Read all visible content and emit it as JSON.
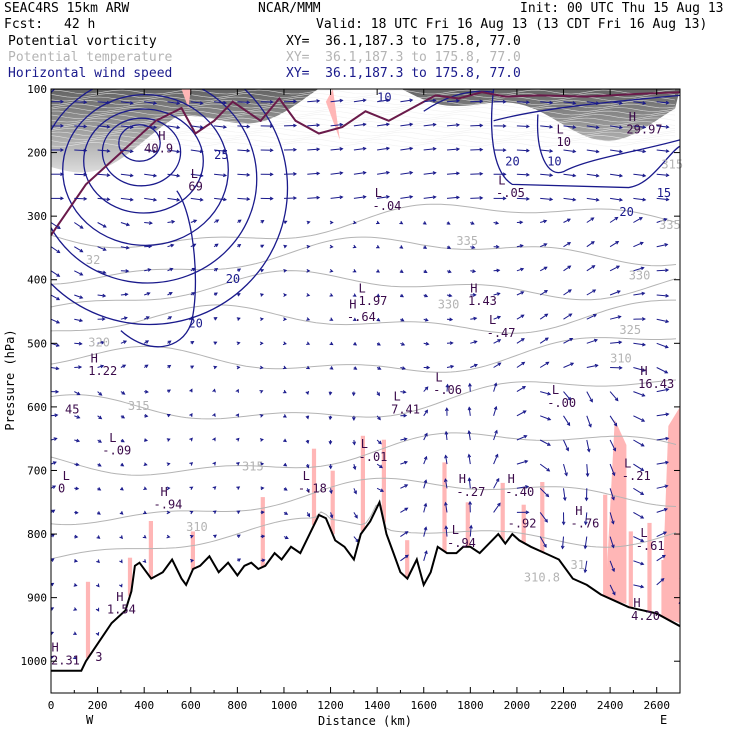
{
  "header": {
    "model": "SEAC4RS 15km ARW",
    "org": "NCAR/MMM",
    "init": "Init: 00 UTC Thu 15 Aug 13",
    "fcst_label": "Fcst:",
    "fcst_value": "42 h",
    "valid": "Valid: 18 UTC Fri 16 Aug 13 (13 CDT Fri 16 Aug 13)"
  },
  "fields": [
    {
      "name": "Potential vorticity",
      "xy": "XY=  36.1,187.3 to 175.8, 77.0",
      "color": "#000000"
    },
    {
      "name": "Potential temperature",
      "xy": "XY=  36.1,187.3 to 175.8, 77.0",
      "color": "#b4b4b4"
    },
    {
      "name": "Horizontal wind speed",
      "xy": "XY=  36.1,187.3 to 175.8, 77.0",
      "color": "#1a1a8c"
    }
  ],
  "chart_data": {
    "type": "cross-section",
    "xlabel": "Distance (km)",
    "ylabel": "Pressure (hPa)",
    "xlim": [
      0,
      2700
    ],
    "ylim": [
      1050,
      100
    ],
    "x_ticks": [
      "0",
      "200",
      "400",
      "600",
      "800",
      "1000",
      "1200",
      "1400",
      "1600",
      "1800",
      "2000",
      "2200",
      "2400",
      "2600"
    ],
    "y_ticks": [
      "100",
      "200",
      "300",
      "400",
      "500",
      "600",
      "700",
      "800",
      "900",
      "1000"
    ],
    "x_end_labels": {
      "left": "W",
      "right": "E"
    },
    "terrain_color": "#000000",
    "pv_fill_color": "#ffb6b6",
    "wind_color": "#1a1a8c",
    "theta_color": "#b4b4b4",
    "pv_line_color": "#6a1a4a",
    "terrain": [
      {
        "x": 0,
        "p": 1015
      },
      {
        "x": 130,
        "p": 1015
      },
      {
        "x": 150,
        "p": 1000
      },
      {
        "x": 260,
        "p": 940
      },
      {
        "x": 320,
        "p": 920
      },
      {
        "x": 345,
        "p": 890
      },
      {
        "x": 360,
        "p": 850
      },
      {
        "x": 380,
        "p": 845
      },
      {
        "x": 430,
        "p": 870
      },
      {
        "x": 480,
        "p": 860
      },
      {
        "x": 520,
        "p": 840
      },
      {
        "x": 560,
        "p": 870
      },
      {
        "x": 580,
        "p": 880
      },
      {
        "x": 610,
        "p": 855
      },
      {
        "x": 640,
        "p": 850
      },
      {
        "x": 680,
        "p": 835
      },
      {
        "x": 720,
        "p": 860
      },
      {
        "x": 760,
        "p": 845
      },
      {
        "x": 800,
        "p": 865
      },
      {
        "x": 830,
        "p": 850
      },
      {
        "x": 860,
        "p": 845
      },
      {
        "x": 890,
        "p": 855
      },
      {
        "x": 920,
        "p": 850
      },
      {
        "x": 960,
        "p": 830
      },
      {
        "x": 990,
        "p": 840
      },
      {
        "x": 1030,
        "p": 820
      },
      {
        "x": 1070,
        "p": 830
      },
      {
        "x": 1110,
        "p": 800
      },
      {
        "x": 1150,
        "p": 770
      },
      {
        "x": 1180,
        "p": 775
      },
      {
        "x": 1220,
        "p": 810
      },
      {
        "x": 1260,
        "p": 820
      },
      {
        "x": 1300,
        "p": 840
      },
      {
        "x": 1330,
        "p": 800
      },
      {
        "x": 1370,
        "p": 780
      },
      {
        "x": 1410,
        "p": 750
      },
      {
        "x": 1440,
        "p": 800
      },
      {
        "x": 1470,
        "p": 830
      },
      {
        "x": 1500,
        "p": 860
      },
      {
        "x": 1530,
        "p": 870
      },
      {
        "x": 1570,
        "p": 840
      },
      {
        "x": 1600,
        "p": 880
      },
      {
        "x": 1630,
        "p": 860
      },
      {
        "x": 1660,
        "p": 820
      },
      {
        "x": 1700,
        "p": 830
      },
      {
        "x": 1740,
        "p": 830
      },
      {
        "x": 1770,
        "p": 820
      },
      {
        "x": 1800,
        "p": 820
      },
      {
        "x": 1840,
        "p": 830
      },
      {
        "x": 1880,
        "p": 815
      },
      {
        "x": 1920,
        "p": 800
      },
      {
        "x": 1950,
        "p": 815
      },
      {
        "x": 1980,
        "p": 800
      },
      {
        "x": 2010,
        "p": 810
      },
      {
        "x": 2060,
        "p": 820
      },
      {
        "x": 2120,
        "p": 830
      },
      {
        "x": 2180,
        "p": 840
      },
      {
        "x": 2240,
        "p": 870
      },
      {
        "x": 2300,
        "p": 880
      },
      {
        "x": 2360,
        "p": 895
      },
      {
        "x": 2420,
        "p": 905
      },
      {
        "x": 2480,
        "p": 915
      },
      {
        "x": 2540,
        "p": 920
      },
      {
        "x": 2600,
        "p": 925
      },
      {
        "x": 2700,
        "p": 945
      }
    ],
    "pv_labels": [
      {
        "t": "H",
        "x": 2,
        "p": 985
      },
      {
        "t": "2.31",
        "x": 0,
        "p": 1005
      },
      {
        "t": "H",
        "x": 280,
        "p": 905
      },
      {
        "t": "1.54",
        "x": 240,
        "p": 925
      },
      {
        "t": "H",
        "x": 170,
        "p": 530
      },
      {
        "t": "1.22",
        "x": 160,
        "p": 550
      },
      {
        "t": "L",
        "x": 50,
        "p": 715
      },
      {
        "t": "0",
        "x": 30,
        "p": 735
      },
      {
        "t": "H",
        "x": 470,
        "p": 740
      },
      {
        "t": "-.94",
        "x": 440,
        "p": 760
      },
      {
        "t": "L",
        "x": 250,
        "p": 655
      },
      {
        "t": "-.09",
        "x": 220,
        "p": 675
      },
      {
        "t": "L",
        "x": 600,
        "p": 240
      },
      {
        "t": "69",
        "x": 590,
        "p": 260
      },
      {
        "t": "45",
        "x": 60,
        "p": 610
      },
      {
        "t": "L",
        "x": 1330,
        "p": 665
      },
      {
        "t": "-.01",
        "x": 1320,
        "p": 685
      },
      {
        "t": "H",
        "x": 1280,
        "p": 445
      },
      {
        "t": "-.64",
        "x": 1270,
        "p": 465
      },
      {
        "t": "L",
        "x": 1320,
        "p": 420
      },
      {
        "t": "1.97",
        "x": 1320,
        "p": 440
      },
      {
        "t": "H",
        "x": 1800,
        "p": 420
      },
      {
        "t": "1.43",
        "x": 1790,
        "p": 440
      },
      {
        "t": "L",
        "x": 1470,
        "p": 590
      },
      {
        "t": "7.41",
        "x": 1460,
        "p": 610
      },
      {
        "t": "L",
        "x": 1650,
        "p": 560
      },
      {
        "t": "-.06",
        "x": 1640,
        "p": 580
      },
      {
        "t": "L",
        "x": 1880,
        "p": 470
      },
      {
        "t": "-.47",
        "x": 1870,
        "p": 490
      },
      {
        "t": "L",
        "x": 1390,
        "p": 270
      },
      {
        "t": "-.04",
        "x": 1380,
        "p": 290
      },
      {
        "t": "L",
        "x": 1080,
        "p": 715
      },
      {
        "t": "-.18",
        "x": 1060,
        "p": 735
      },
      {
        "t": "H",
        "x": 1750,
        "p": 720
      },
      {
        "t": "-.27",
        "x": 1740,
        "p": 740
      },
      {
        "t": "L",
        "x": 1720,
        "p": 800
      },
      {
        "t": "-.94",
        "x": 1700,
        "p": 820
      },
      {
        "t": "H",
        "x": 1960,
        "p": 720
      },
      {
        "t": "-.40",
        "x": 1950,
        "p": 740
      },
      {
        "t": "-.92",
        "x": 1960,
        "p": 790
      },
      {
        "t": "L",
        "x": 2150,
        "p": 580
      },
      {
        "t": "-.00",
        "x": 2130,
        "p": 600
      },
      {
        "t": "H",
        "x": 2530,
        "p": 550
      },
      {
        "t": "16.43",
        "x": 2520,
        "p": 570
      },
      {
        "t": "L",
        "x": 2460,
        "p": 695
      },
      {
        "t": "-.21",
        "x": 2450,
        "p": 715
      },
      {
        "t": "H",
        "x": 2250,
        "p": 770
      },
      {
        "t": "-.76",
        "x": 2230,
        "p": 790
      },
      {
        "t": "L",
        "x": 2530,
        "p": 805
      },
      {
        "t": "-.61",
        "x": 2510,
        "p": 825
      },
      {
        "t": "H",
        "x": 2500,
        "p": 915
      },
      {
        "t": "4.20",
        "x": 2490,
        "p": 935
      },
      {
        "t": "L",
        "x": 1920,
        "p": 250
      },
      {
        "t": "-.05",
        "x": 1910,
        "p": 270
      },
      {
        "t": "H",
        "x": 2480,
        "p": 150
      },
      {
        "t": "29.97",
        "x": 2470,
        "p": 170
      },
      {
        "t": "L",
        "x": 2170,
        "p": 170
      },
      {
        "t": "10",
        "x": 2170,
        "p": 190
      },
      {
        "t": "H",
        "x": 460,
        "p": 180
      },
      {
        "t": "40.9",
        "x": 400,
        "p": 200
      },
      {
        "t": "3",
        "x": 190,
        "p": 1000
      }
    ],
    "wind_labels": [
      {
        "t": "25",
        "x": 700,
        "p": 210
      },
      {
        "t": "20",
        "x": 750,
        "p": 405
      },
      {
        "t": "20",
        "x": 590,
        "p": 475
      },
      {
        "t": "20",
        "x": 1950,
        "p": 220
      },
      {
        "t": "20",
        "x": 2440,
        "p": 300
      },
      {
        "t": "10",
        "x": 2130,
        "p": 220
      },
      {
        "t": "15",
        "x": 2600,
        "p": 270
      },
      {
        "t": "10",
        "x": 1400,
        "p": 120
      }
    ],
    "theta_labels": [
      {
        "t": "32",
        "x": 150,
        "p": 375
      },
      {
        "t": "320",
        "x": 160,
        "p": 505
      },
      {
        "t": "315",
        "x": 330,
        "p": 605
      },
      {
        "t": "315",
        "x": 820,
        "p": 700
      },
      {
        "t": "335",
        "x": 1740,
        "p": 345
      },
      {
        "t": "330",
        "x": 1660,
        "p": 445
      },
      {
        "t": "335",
        "x": 2610,
        "p": 320
      },
      {
        "t": "330",
        "x": 2480,
        "p": 400
      },
      {
        "t": "325",
        "x": 2440,
        "p": 485
      },
      {
        "t": "310",
        "x": 2400,
        "p": 530
      },
      {
        "t": "310.8",
        "x": 2030,
        "p": 875
      },
      {
        "t": "31",
        "x": 2230,
        "p": 855
      },
      {
        "t": "310",
        "x": 580,
        "p": 795
      },
      {
        "t": "315",
        "x": 2620,
        "p": 225
      }
    ]
  }
}
